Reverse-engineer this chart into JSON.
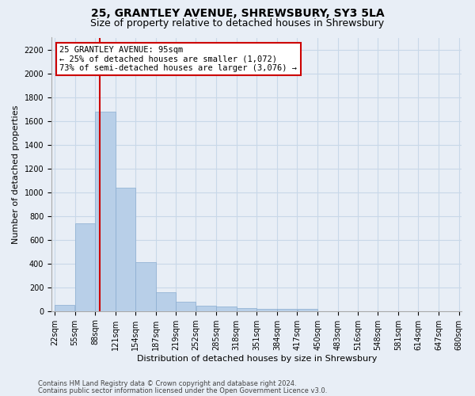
{
  "title1": "25, GRANTLEY AVENUE, SHREWSBURY, SY3 5LA",
  "title2": "Size of property relative to detached houses in Shrewsbury",
  "xlabel": "Distribution of detached houses by size in Shrewsbury",
  "ylabel": "Number of detached properties",
  "bar_edges": [
    22,
    55,
    88,
    121,
    154,
    187,
    219,
    252,
    285,
    318,
    351,
    384,
    417,
    450,
    483,
    516,
    548,
    581,
    614,
    647,
    680
  ],
  "bar_heights": [
    50,
    740,
    1680,
    1040,
    410,
    155,
    80,
    45,
    40,
    25,
    20,
    15,
    15,
    0,
    0,
    0,
    0,
    0,
    0,
    0
  ],
  "bar_color": "#b8cfe8",
  "bar_edgecolor": "#8aadd0",
  "grid_color": "#c8d8e8",
  "background_color": "#e8eef6",
  "red_line_x": 95,
  "annotation_line1": "25 GRANTLEY AVENUE: 95sqm",
  "annotation_line2": "← 25% of detached houses are smaller (1,072)",
  "annotation_line3": "73% of semi-detached houses are larger (3,076) →",
  "annotation_box_color": "#ffffff",
  "annotation_box_edgecolor": "#cc0000",
  "ylim": [
    0,
    2300
  ],
  "yticks": [
    0,
    200,
    400,
    600,
    800,
    1000,
    1200,
    1400,
    1600,
    1800,
    2000,
    2200
  ],
  "footer_line1": "Contains HM Land Registry data © Crown copyright and database right 2024.",
  "footer_line2": "Contains public sector information licensed under the Open Government Licence v3.0.",
  "title1_fontsize": 10,
  "title2_fontsize": 9,
  "xlabel_fontsize": 8,
  "ylabel_fontsize": 8,
  "tick_fontsize": 7,
  "annotation_fontsize": 7.5,
  "footer_fontsize": 6
}
